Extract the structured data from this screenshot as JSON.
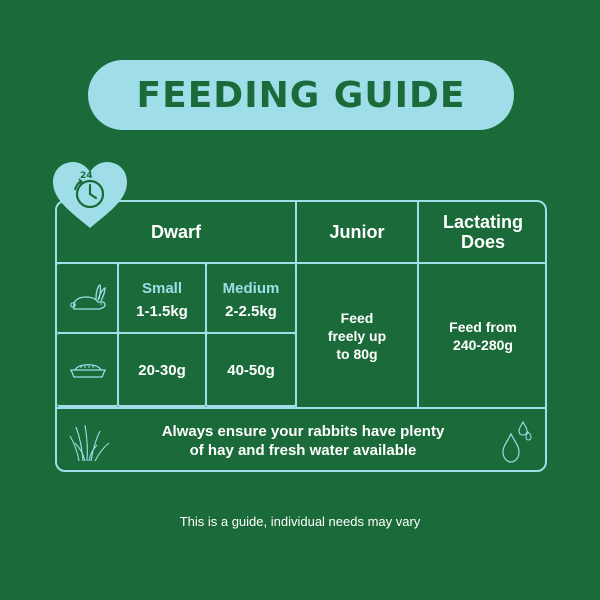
{
  "title": "FEEDING GUIDE",
  "badge": {
    "hours": "24"
  },
  "headers": {
    "dwarf": "Dwarf",
    "junior": "Junior",
    "lactating": [
      "Lactating",
      "Does"
    ]
  },
  "sizes": {
    "small": {
      "label": "Small",
      "weight": "1-1.5kg",
      "amount": "20-30g"
    },
    "medium": {
      "label": "Medium",
      "weight": "2-2.5kg",
      "amount": "40-50g"
    }
  },
  "junior_text": [
    "Feed",
    "freely up",
    "to 80g"
  ],
  "lactating_text": [
    "Feed from",
    "240-280g"
  ],
  "note": [
    "Always ensure your rabbits have plenty",
    "of hay and fresh water available"
  ],
  "footer": "This is a guide, individual needs may vary",
  "colors": {
    "background": "#1b6b3a",
    "accent": "#9fdde9",
    "text": "#ffffff"
  }
}
